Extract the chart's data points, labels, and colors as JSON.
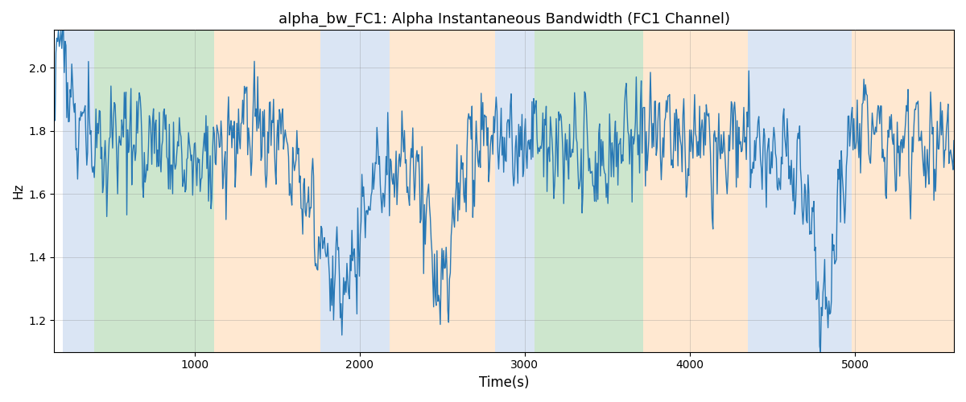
{
  "title": "alpha_bw_FC1: Alpha Instantaneous Bandwidth (FC1 Channel)",
  "xlabel": "Time(s)",
  "ylabel": "Hz",
  "xlim": [
    150,
    5600
  ],
  "ylim": [
    1.1,
    2.12
  ],
  "figsize": [
    12.0,
    5.0
  ],
  "dpi": 100,
  "line_color": "#2878b5",
  "line_width": 1.0,
  "colored_bands": [
    {
      "xmin": 200,
      "xmax": 390,
      "color": "#aec6e8",
      "alpha": 0.45
    },
    {
      "xmin": 390,
      "xmax": 1120,
      "color": "#90c990",
      "alpha": 0.45
    },
    {
      "xmin": 1120,
      "xmax": 1760,
      "color": "#ffcc99",
      "alpha": 0.45
    },
    {
      "xmin": 1760,
      "xmax": 2180,
      "color": "#aec6e8",
      "alpha": 0.45
    },
    {
      "xmin": 2180,
      "xmax": 2820,
      "color": "#ffcc99",
      "alpha": 0.45
    },
    {
      "xmin": 2820,
      "xmax": 3060,
      "color": "#aec6e8",
      "alpha": 0.45
    },
    {
      "xmin": 3060,
      "xmax": 3720,
      "color": "#90c990",
      "alpha": 0.45
    },
    {
      "xmin": 3720,
      "xmax": 3900,
      "color": "#ffcc99",
      "alpha": 0.45
    },
    {
      "xmin": 3900,
      "xmax": 4350,
      "color": "#ffcc99",
      "alpha": 0.45
    },
    {
      "xmin": 4350,
      "xmax": 4980,
      "color": "#aec6e8",
      "alpha": 0.45
    },
    {
      "xmin": 4980,
      "xmax": 5600,
      "color": "#ffcc99",
      "alpha": 0.45
    }
  ],
  "xticks": [
    1000,
    2000,
    3000,
    4000,
    5000
  ],
  "yticks": [
    1.2,
    1.4,
    1.6,
    1.8,
    2.0
  ],
  "seed": 17,
  "num_points": 1080
}
